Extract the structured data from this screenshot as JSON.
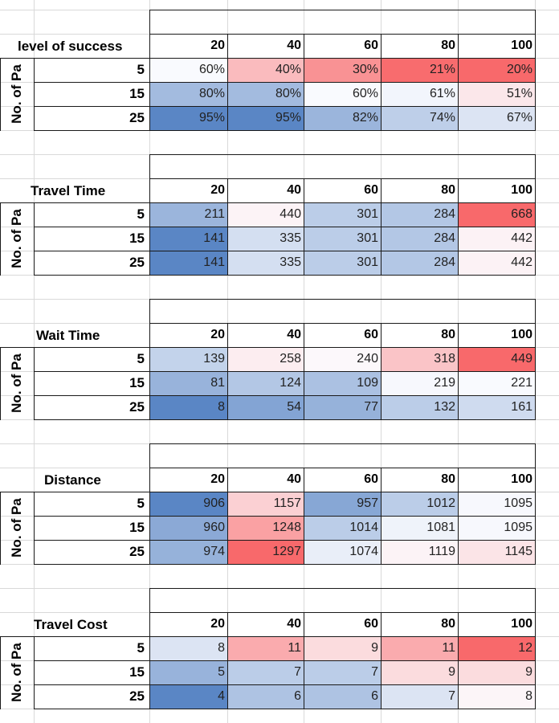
{
  "colors": {
    "blue_max": "#5a86c5",
    "white": "#fcfcff",
    "red_max": "#f8696b"
  },
  "blocks": [
    {
      "title": "level of success",
      "row_axis_label": "No. of Pa",
      "cols": [
        "20",
        "40",
        "60",
        "80",
        "100"
      ],
      "rows": [
        {
          "label": "5",
          "values": [
            "60%",
            "40%",
            "30%",
            "21%",
            "20%"
          ],
          "scale": [
            -0.02,
            0.44,
            0.72,
            0.98,
            1.0
          ]
        },
        {
          "label": "15",
          "values": [
            "80%",
            "80%",
            "60%",
            "61%",
            "51%"
          ],
          "scale": [
            -0.55,
            -0.55,
            -0.02,
            -0.06,
            0.14
          ]
        },
        {
          "label": "25",
          "values": [
            "95%",
            "95%",
            "82%",
            "74%",
            "67%"
          ],
          "scale": [
            -1.0,
            -1.0,
            -0.6,
            -0.38,
            -0.2
          ]
        }
      ]
    },
    {
      "title": "Travel Time",
      "row_axis_label": "No. of Pa",
      "cols": [
        "20",
        "40",
        "60",
        "80",
        "100"
      ],
      "rows": [
        {
          "label": "5",
          "values": [
            "211",
            "440",
            "301",
            "284",
            "668"
          ],
          "scale": [
            -0.6,
            0.06,
            -0.4,
            -0.45,
            1.0
          ]
        },
        {
          "label": "15",
          "values": [
            "141",
            "335",
            "301",
            "284",
            "442"
          ],
          "scale": [
            -1.0,
            -0.25,
            -0.4,
            -0.45,
            0.07
          ]
        },
        {
          "label": "25",
          "values": [
            "141",
            "335",
            "301",
            "284",
            "442"
          ],
          "scale": [
            -1.0,
            -0.25,
            -0.4,
            -0.45,
            0.07
          ]
        }
      ]
    },
    {
      "title": "Wait Time",
      "row_axis_label": "No. of Pa",
      "cols": [
        "20",
        "40",
        "60",
        "80",
        "100"
      ],
      "rows": [
        {
          "label": "5",
          "values": [
            "139",
            "258",
            "240",
            "318",
            "449"
          ],
          "scale": [
            -0.35,
            0.1,
            0.03,
            0.38,
            1.0
          ]
        },
        {
          "label": "15",
          "values": [
            "81",
            "124",
            "109",
            "219",
            "221"
          ],
          "scale": [
            -0.62,
            -0.45,
            -0.5,
            -0.03,
            -0.02
          ]
        },
        {
          "label": "25",
          "values": [
            "8",
            "54",
            "77",
            "132",
            "161"
          ],
          "scale": [
            -1.0,
            -0.75,
            -0.63,
            -0.4,
            -0.28
          ]
        }
      ]
    },
    {
      "title": "Distance",
      "row_axis_label": "No. of Pa",
      "cols": [
        "20",
        "40",
        "60",
        "80",
        "100"
      ],
      "rows": [
        {
          "label": "5",
          "values": [
            "906",
            "1157",
            "957",
            "1012",
            "1095"
          ],
          "scale": [
            -1.0,
            0.3,
            -0.72,
            -0.4,
            -0.03
          ]
        },
        {
          "label": "15",
          "values": [
            "960",
            "1248",
            "1014",
            "1081",
            "1095"
          ],
          "scale": [
            -0.7,
            0.62,
            -0.4,
            -0.08,
            -0.03
          ]
        },
        {
          "label": "25",
          "values": [
            "974",
            "1297",
            "1074",
            "1119",
            "1145"
          ],
          "scale": [
            -0.63,
            1.0,
            -0.12,
            0.06,
            0.16
          ]
        }
      ]
    },
    {
      "title": "Travel Cost",
      "row_axis_label": "No. of Pa",
      "cols": [
        "20",
        "40",
        "60",
        "80",
        "100"
      ],
      "rows": [
        {
          "label": "5",
          "values": [
            "8",
            "11",
            "9",
            "11",
            "12"
          ],
          "scale": [
            -0.2,
            0.55,
            0.22,
            0.55,
            1.0
          ]
        },
        {
          "label": "15",
          "values": [
            "5",
            "7",
            "7",
            "9",
            "9"
          ],
          "scale": [
            -0.62,
            -0.4,
            -0.4,
            0.22,
            0.22
          ]
        },
        {
          "label": "25",
          "values": [
            "4",
            "6",
            "6",
            "7",
            "8"
          ],
          "scale": [
            -1.0,
            -0.48,
            -0.48,
            -0.2,
            0.05
          ]
        }
      ]
    }
  ]
}
